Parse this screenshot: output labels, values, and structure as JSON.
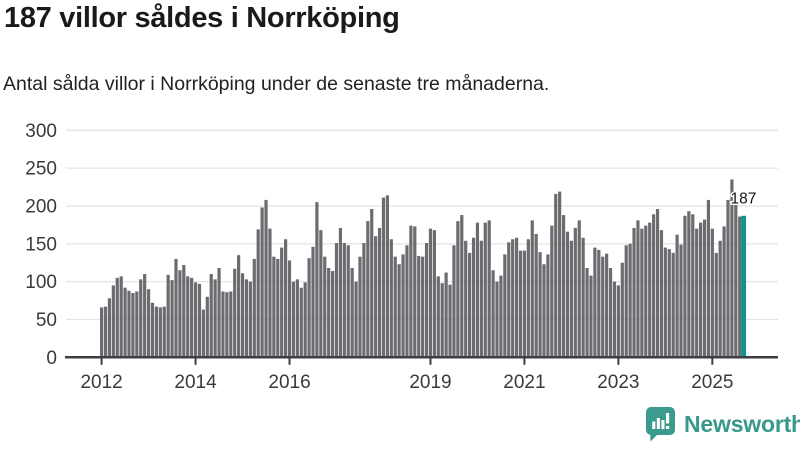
{
  "header": {
    "title": "187 villor såldes i Norrköping",
    "subtitle": "Antal sålda villor i Norrköping under de senaste tre månaderna."
  },
  "chart_data": {
    "type": "bar",
    "title": "187 villor såldes i Norrköping",
    "xlabel": "",
    "ylabel": "",
    "start_year": 2012,
    "frequency": "monthly",
    "values": [
      66,
      67,
      78,
      95,
      105,
      107,
      92,
      88,
      85,
      87,
      103,
      110,
      90,
      72,
      67,
      66,
      67,
      109,
      102,
      130,
      115,
      122,
      107,
      105,
      99,
      97,
      63,
      80,
      110,
      103,
      118,
      87,
      86,
      87,
      117,
      135,
      111,
      103,
      100,
      130,
      169,
      198,
      208,
      170,
      133,
      130,
      145,
      156,
      128,
      100,
      103,
      92,
      99,
      131,
      146,
      205,
      168,
      133,
      118,
      114,
      151,
      171,
      151,
      148,
      118,
      100,
      133,
      151,
      180,
      196,
      160,
      171,
      211,
      214,
      156,
      133,
      123,
      136,
      148,
      174,
      173,
      134,
      133,
      151,
      170,
      168,
      107,
      98,
      112,
      96,
      148,
      180,
      188,
      154,
      138,
      158,
      178,
      154,
      178,
      181,
      115,
      100,
      108,
      136,
      152,
      156,
      158,
      141,
      141,
      156,
      181,
      163,
      139,
      123,
      136,
      174,
      216,
      219,
      188,
      166,
      154,
      171,
      181,
      158,
      118,
      108,
      145,
      142,
      133,
      137,
      118,
      100,
      95,
      125,
      148,
      150,
      171,
      181,
      170,
      174,
      178,
      189,
      196,
      168,
      145,
      143,
      138,
      162,
      149,
      187,
      193,
      189,
      170,
      178,
      182,
      208,
      170,
      138,
      154,
      173,
      208,
      235,
      207,
      186,
      187
    ],
    "ylim": [
      0,
      300
    ],
    "yticks": [
      0,
      50,
      100,
      150,
      200,
      250,
      300
    ],
    "xticks": [
      2012,
      2014,
      2016,
      2019,
      2021,
      2023,
      2025
    ],
    "grid": "horizontal",
    "legend": "none",
    "bar_color": "#6b6b70",
    "axis_color": "#3e3e42",
    "grid_color": "#e4e4e4",
    "highlight": {
      "value": 187,
      "label": "187",
      "color": "#0d968c"
    }
  },
  "footer": {
    "brand": "Newsworthy",
    "brand_color": "#38988b",
    "logo_color": "#3b9b8e"
  }
}
